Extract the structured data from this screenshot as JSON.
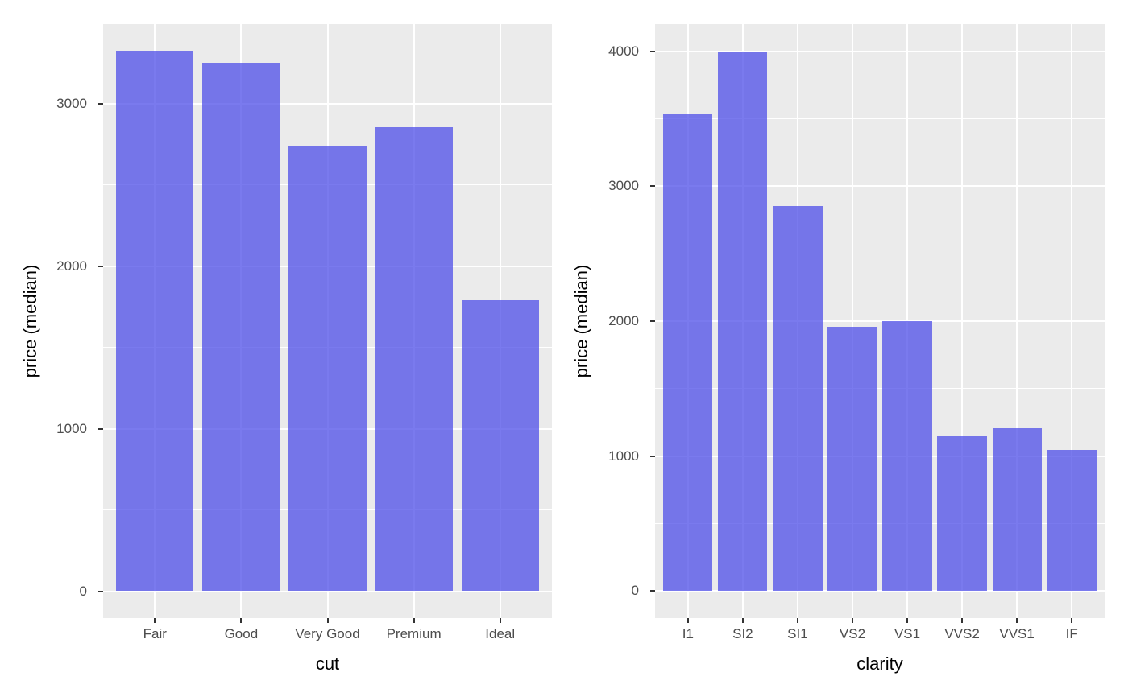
{
  "figure": {
    "background": "#FFFFFF",
    "panel_background": "#EBEBEB",
    "grid_major_color": "#FFFFFF",
    "grid_minor_color": "#FFFFFF",
    "bar_fill": "#7373EB",
    "bar_fill_rgba": "rgba(70,70,232,0.72)",
    "axis_tick_color": "#333333",
    "tick_label_color": "#4D4D4D",
    "axis_title_color": "#000000"
  },
  "chart_data": [
    {
      "type": "bar",
      "title": "",
      "xlabel": "cut",
      "ylabel": "price (median)",
      "categories": [
        "Fair",
        "Good",
        "Very Good",
        "Premium",
        "Ideal"
      ],
      "values": [
        3325,
        3255,
        2745,
        2855,
        1790
      ],
      "yticks": [
        0,
        1000,
        2000,
        3000
      ],
      "ytick_labels": [
        "0",
        "1000",
        "2000",
        "3000"
      ],
      "ylim": [
        -166,
        3491
      ],
      "grid": "h-major+h-minor+v-major",
      "legend": "none",
      "bar_relative_width": 0.9
    },
    {
      "type": "bar",
      "title": "",
      "xlabel": "clarity",
      "ylabel": "price (median)",
      "categories": [
        "I1",
        "SI2",
        "SI1",
        "VS2",
        "VS1",
        "VVS2",
        "VVS1",
        "IF"
      ],
      "values": [
        3535,
        4000,
        2855,
        1960,
        2000,
        1145,
        1205,
        1045
      ],
      "yticks": [
        0,
        1000,
        2000,
        3000,
        4000
      ],
      "ytick_labels": [
        "0",
        "1000",
        "2000",
        "3000",
        "4000"
      ],
      "ylim": [
        -200,
        4200
      ],
      "grid": "h-major+h-minor+v-major",
      "legend": "none",
      "bar_relative_width": 0.9
    }
  ]
}
